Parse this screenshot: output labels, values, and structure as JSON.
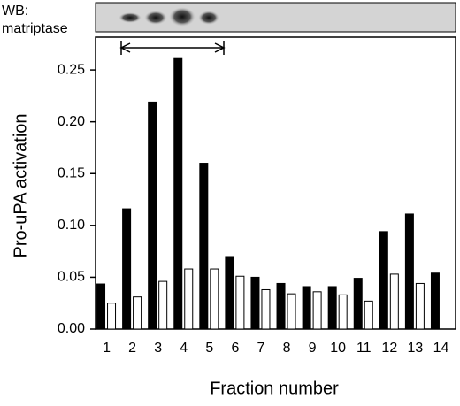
{
  "chart_data": {
    "type": "bar",
    "annotations": [
      "WB:",
      "matriptase"
    ],
    "xlabel": "Fraction number",
    "ylabel": "Pro-uPA activation",
    "categories": [
      "1",
      "2",
      "3",
      "4",
      "5",
      "6",
      "7",
      "8",
      "9",
      "10",
      "11",
      "12",
      "13",
      "14"
    ],
    "series": [
      {
        "color": "#000000",
        "values": [
          0.0435,
          0.116,
          0.219,
          0.261,
          0.16,
          0.07,
          0.05,
          0.044,
          0.041,
          0.041,
          0.049,
          0.094,
          0.111,
          0.054
        ]
      },
      {
        "color": "#ffffff",
        "values": [
          0.025,
          0.031,
          0.046,
          0.058,
          0.058,
          0.051,
          0.038,
          0.034,
          0.036,
          0.033,
          0.027,
          0.053,
          0.044,
          null
        ]
      }
    ],
    "ylim": [
      0,
      0.268
    ],
    "yticks": [
      {
        "value": 0,
        "label": "0.00"
      },
      {
        "value": 0.05,
        "label": "0.05"
      },
      {
        "value": 0.1,
        "label": "0.10"
      },
      {
        "value": 0.15,
        "label": "0.15"
      },
      {
        "value": 0.2,
        "label": "0.20"
      },
      {
        "value": 0.25,
        "label": "0.25"
      }
    ],
    "grid": false
  }
}
